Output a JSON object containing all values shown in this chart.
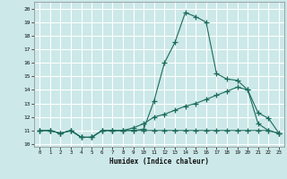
{
  "xlabel": "Humidex (Indice chaleur)",
  "bg_color": "#cce8e8",
  "grid_color": "#ffffff",
  "line_color": "#1a6b5a",
  "xlim": [
    -0.5,
    23.5
  ],
  "ylim": [
    9.8,
    20.5
  ],
  "xticks": [
    0,
    1,
    2,
    3,
    4,
    5,
    6,
    7,
    8,
    9,
    10,
    11,
    12,
    13,
    14,
    15,
    16,
    17,
    18,
    19,
    20,
    21,
    22,
    23
  ],
  "yticks": [
    10,
    11,
    12,
    13,
    14,
    15,
    16,
    17,
    18,
    19,
    20
  ],
  "curve1_x": [
    0,
    1,
    2,
    3,
    4,
    5,
    6,
    7,
    8,
    9,
    10,
    11,
    12,
    13,
    14,
    15,
    16,
    17,
    18,
    19,
    20,
    21,
    22,
    23
  ],
  "curve1_y": [
    11.0,
    11.0,
    10.8,
    11.0,
    10.5,
    10.5,
    11.0,
    11.0,
    11.0,
    11.0,
    11.0,
    11.0,
    11.0,
    11.0,
    11.0,
    11.0,
    11.0,
    11.0,
    11.0,
    11.0,
    11.0,
    11.0,
    11.0,
    10.8
  ],
  "curve2_x": [
    0,
    1,
    2,
    3,
    4,
    5,
    6,
    7,
    8,
    9,
    10,
    11,
    12,
    13,
    14,
    15,
    16,
    17,
    18,
    19,
    20,
    21,
    22,
    23
  ],
  "curve2_y": [
    11.0,
    11.0,
    10.8,
    11.0,
    10.5,
    10.5,
    11.0,
    11.0,
    11.0,
    11.2,
    11.5,
    12.0,
    12.2,
    12.5,
    12.8,
    13.0,
    13.3,
    13.6,
    13.9,
    14.2,
    14.0,
    11.5,
    11.0,
    10.8
  ],
  "curve3_x": [
    0,
    1,
    2,
    3,
    4,
    5,
    6,
    7,
    8,
    9,
    10,
    11,
    12,
    13,
    14,
    15,
    16,
    17,
    18,
    19,
    20,
    21,
    22,
    23
  ],
  "curve3_y": [
    11.0,
    11.0,
    10.8,
    11.0,
    10.5,
    10.5,
    11.0,
    11.0,
    11.0,
    11.0,
    11.1,
    13.2,
    16.0,
    17.5,
    19.7,
    19.4,
    19.0,
    15.2,
    14.8,
    14.7,
    14.0,
    12.3,
    11.9,
    10.8
  ]
}
